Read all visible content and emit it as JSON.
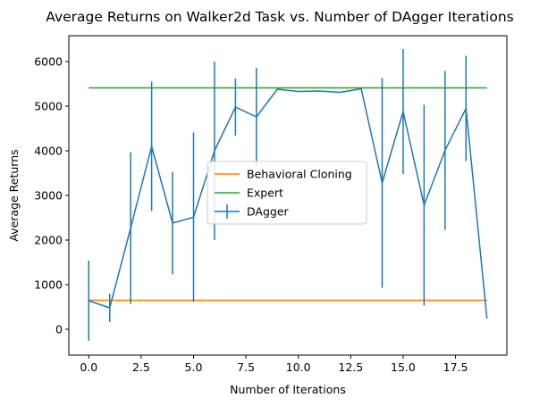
{
  "chart_data": {
    "type": "line",
    "title": "Average Returns on Walker2d Task vs. Number of DAgger Iterations",
    "xlabel": "Number of Iterations",
    "ylabel": "Average Returns",
    "xlim": [
      -0.95,
      19.95
    ],
    "ylim": [
      -580,
      6580
    ],
    "xticks": [
      0,
      2.5,
      5,
      7.5,
      10,
      12.5,
      15,
      17.5
    ],
    "xtick_labels": [
      "0.0",
      "2.5",
      "5.0",
      "7.5",
      "10.0",
      "12.5",
      "15.0",
      "17.5"
    ],
    "yticks": [
      0,
      1000,
      2000,
      3000,
      4000,
      5000,
      6000
    ],
    "ytick_labels": [
      "0",
      "1000",
      "2000",
      "3000",
      "4000",
      "5000",
      "6000"
    ],
    "legend_position": "center",
    "series": [
      {
        "name": "Behavioral Cloning",
        "kind": "hline",
        "color": "#ff7f0e",
        "x": [
          0,
          19
        ],
        "y": [
          650,
          650
        ]
      },
      {
        "name": "Expert",
        "kind": "hline",
        "color": "#2ca02c",
        "x": [
          0,
          19
        ],
        "y": [
          5410,
          5410
        ]
      },
      {
        "name": "DAgger",
        "kind": "errorbar",
        "color": "#1f77b4",
        "x": [
          0,
          1,
          2,
          3,
          4,
          5,
          6,
          7,
          8,
          9,
          10,
          11,
          12,
          13,
          14,
          15,
          16,
          17,
          18,
          19
        ],
        "y": [
          640,
          480,
          2270,
          4100,
          2380,
          2510,
          4000,
          4980,
          4760,
          5380,
          5330,
          5340,
          5310,
          5390,
          3280,
          4880,
          2780,
          4010,
          4950,
          240
        ],
        "yerr": [
          900,
          320,
          1700,
          1450,
          1150,
          1900,
          2000,
          640,
          1100,
          0,
          0,
          0,
          0,
          0,
          2350,
          1400,
          2250,
          1780,
          1180,
          0
        ]
      }
    ]
  }
}
